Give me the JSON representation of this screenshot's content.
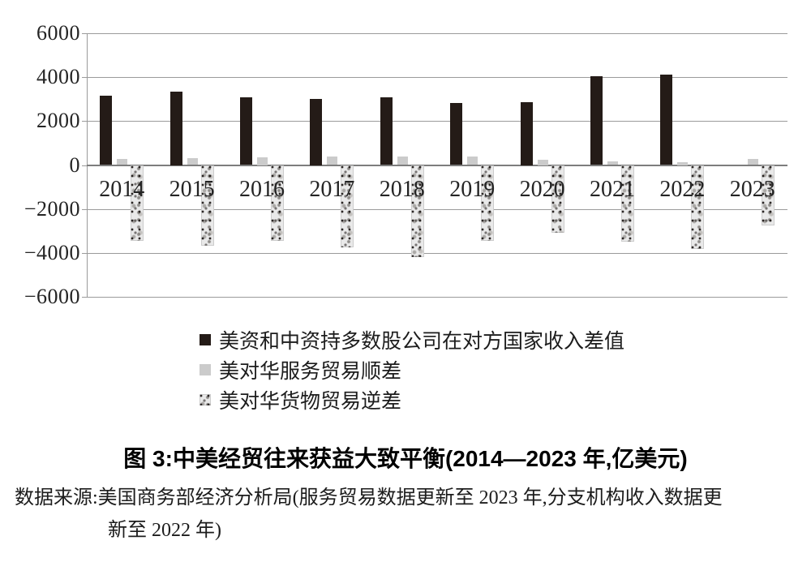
{
  "chart_data": {
    "type": "bar",
    "title": "图 3:中美经贸往来获益大致平衡(2014—2023 年,亿美元)",
    "unit": "亿美元",
    "categories": [
      "2014",
      "2015",
      "2016",
      "2017",
      "2018",
      "2019",
      "2020",
      "2021",
      "2022",
      "2023"
    ],
    "series": [
      {
        "name": "美资和中资持多数股公司在对方国家收入差值",
        "style": "solid-black",
        "color": "#241b17",
        "values": [
          3170,
          3340,
          3090,
          3010,
          3090,
          2830,
          2860,
          4030,
          4130,
          null
        ]
      },
      {
        "name": "美对华服务贸易顺差",
        "style": "solid-gray",
        "color": "#cbcbcb",
        "values": [
          280,
          310,
          370,
          380,
          390,
          400,
          240,
          170,
          130,
          270
        ]
      },
      {
        "name": "美对华货物贸易逆差",
        "style": "speckled",
        "color": "#e9e9e9",
        "values": [
          -3440,
          -3680,
          -3460,
          -3730,
          -4180,
          -3440,
          -3070,
          -3490,
          -3810,
          -2760
        ]
      }
    ],
    "ylim": [
      -6000,
      6000
    ],
    "ytick_step": 2000,
    "yticks": [
      6000,
      4000,
      2000,
      0,
      -2000,
      -4000,
      -6000
    ],
    "grid": true,
    "legend_position": "below-left"
  },
  "caption": {
    "title": "图 3:中美经贸往来获益大致平衡(2014—2023 年,亿美元)",
    "source_line1": "数据来源:美国商务部经济分析局(服务贸易数据更新至 2023 年,分支机构收入数据更",
    "source_line2": "新至 2022 年)"
  }
}
